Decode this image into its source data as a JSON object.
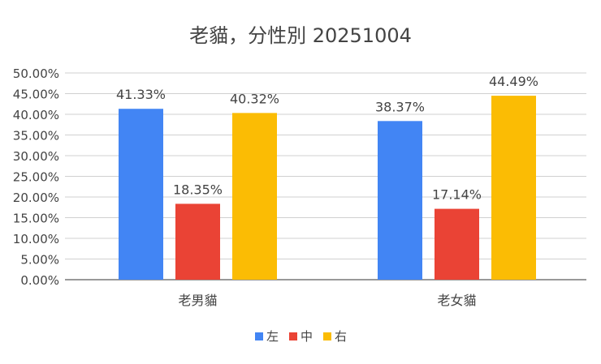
{
  "chart_data": {
    "type": "bar",
    "title": "老貓，分性別 20251004",
    "categories": [
      "老男貓",
      "老女貓"
    ],
    "series": [
      {
        "name": "左",
        "color": "#4285F4",
        "values": [
          41.33,
          38.37
        ],
        "labels": [
          "41.33%",
          "38.37%"
        ]
      },
      {
        "name": "中",
        "color": "#EA4335",
        "values": [
          18.35,
          17.14
        ],
        "labels": [
          "18.35%",
          "17.14%"
        ]
      },
      {
        "name": "右",
        "color": "#FBBC04",
        "values": [
          40.32,
          44.49
        ],
        "labels": [
          "40.32%",
          "44.49%"
        ]
      }
    ],
    "ylim": [
      0,
      50
    ],
    "yticks": [
      "0.00%",
      "5.00%",
      "10.00%",
      "15.00%",
      "20.00%",
      "25.00%",
      "30.00%",
      "35.00%",
      "40.00%",
      "45.00%",
      "50.00%"
    ],
    "grid": true,
    "legend": "bottom"
  }
}
